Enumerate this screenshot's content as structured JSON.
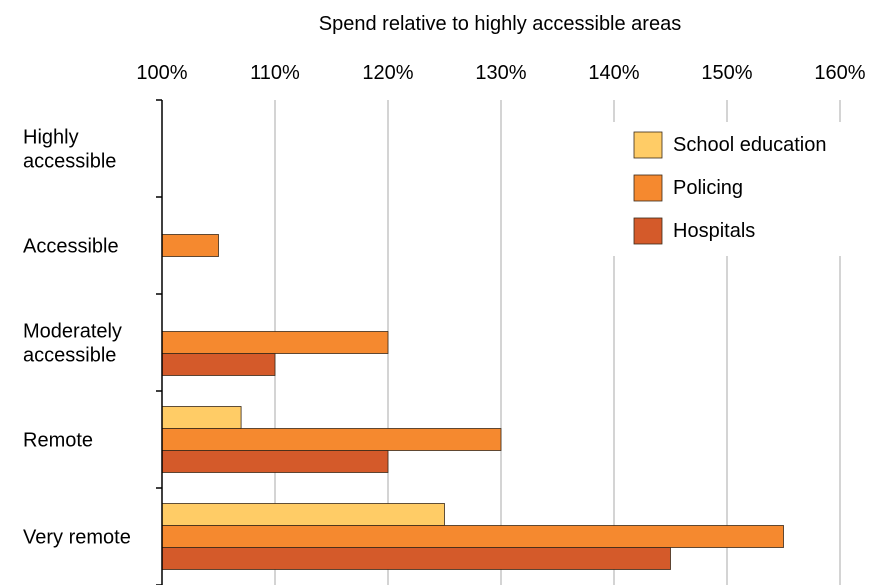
{
  "chart_data": {
    "type": "bar",
    "orientation": "horizontal",
    "title": "",
    "xlabel": "Spend relative to highly accessible areas",
    "ylabel": "",
    "xlim": [
      100,
      160
    ],
    "x_ticks": [
      100,
      110,
      120,
      130,
      140,
      150,
      160
    ],
    "x_tick_labels": [
      "100%",
      "110%",
      "120%",
      "130%",
      "140%",
      "150%",
      "160%"
    ],
    "x_axis_position": "top",
    "grid": "vertical",
    "legend_position": "top-right",
    "categories": [
      [
        "Highly",
        "accessible"
      ],
      [
        "Accessible"
      ],
      [
        "Moderately",
        "accessible"
      ],
      [
        "Remote"
      ],
      [
        "Very remote"
      ]
    ],
    "series": [
      {
        "name": "School education",
        "color": "#ffcc66",
        "values": [
          100,
          100,
          100,
          107,
          125
        ]
      },
      {
        "name": "Policing",
        "color": "#f5892f",
        "values": [
          100,
          105,
          120,
          130,
          155
        ]
      },
      {
        "name": "Hospitals",
        "color": "#d45a2a",
        "values": [
          100,
          100,
          110,
          120,
          145
        ]
      }
    ]
  }
}
